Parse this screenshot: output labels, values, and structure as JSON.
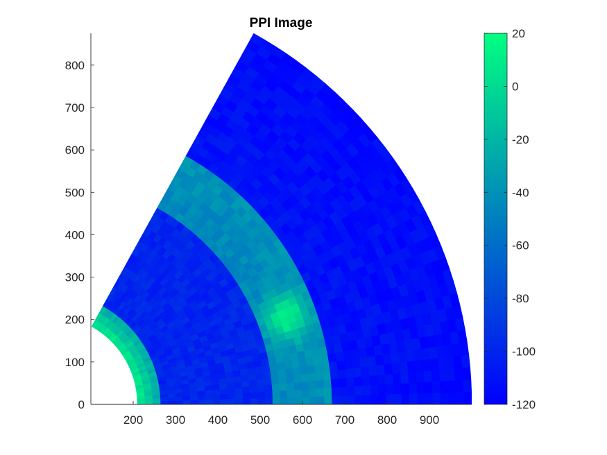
{
  "chart_data": {
    "type": "heatmap",
    "title": "PPI Image",
    "xlabel": "",
    "ylabel": "",
    "xlim": [
      100,
      1000
    ],
    "ylim": [
      0,
      875
    ],
    "x_ticks": [
      200,
      300,
      400,
      500,
      600,
      700,
      800,
      900
    ],
    "y_ticks": [
      0,
      100,
      200,
      300,
      400,
      500,
      600,
      700,
      800
    ],
    "x_tick_labels": [
      "200",
      "300",
      "400",
      "500",
      "600",
      "700",
      "800",
      "900"
    ],
    "y_tick_labels": [
      "0",
      "100",
      "200",
      "300",
      "400",
      "500",
      "600",
      "700",
      "800"
    ],
    "grid": false,
    "sector": {
      "range_min": 210,
      "range_max": 1000,
      "azimuth_min_deg": 0,
      "azimuth_max_deg": 61
    },
    "bands": [
      {
        "r_min": 210,
        "r_max": 265,
        "value_near": 10,
        "value_far": -30
      },
      {
        "r_min": 265,
        "r_max": 530,
        "value_near": -100,
        "value_far": -100
      },
      {
        "r_min": 530,
        "r_max": 670,
        "value_near": -45,
        "value_far": -40,
        "hotspot_value": 15,
        "hotspot_azimuth_deg": 20
      },
      {
        "r_min": 670,
        "r_max": 1000,
        "value_near": -110,
        "value_far": -115
      }
    ],
    "colorbar": {
      "min": -120,
      "max": 20,
      "ticks": [
        20,
        0,
        -20,
        -40,
        -60,
        -80,
        -100,
        -120
      ],
      "tick_labels": [
        "20",
        "0",
        "-20",
        "-40",
        "-60",
        "-80",
        "-100",
        "-120"
      ],
      "color_low": "#0000ff",
      "color_high": "#00ff80"
    }
  }
}
